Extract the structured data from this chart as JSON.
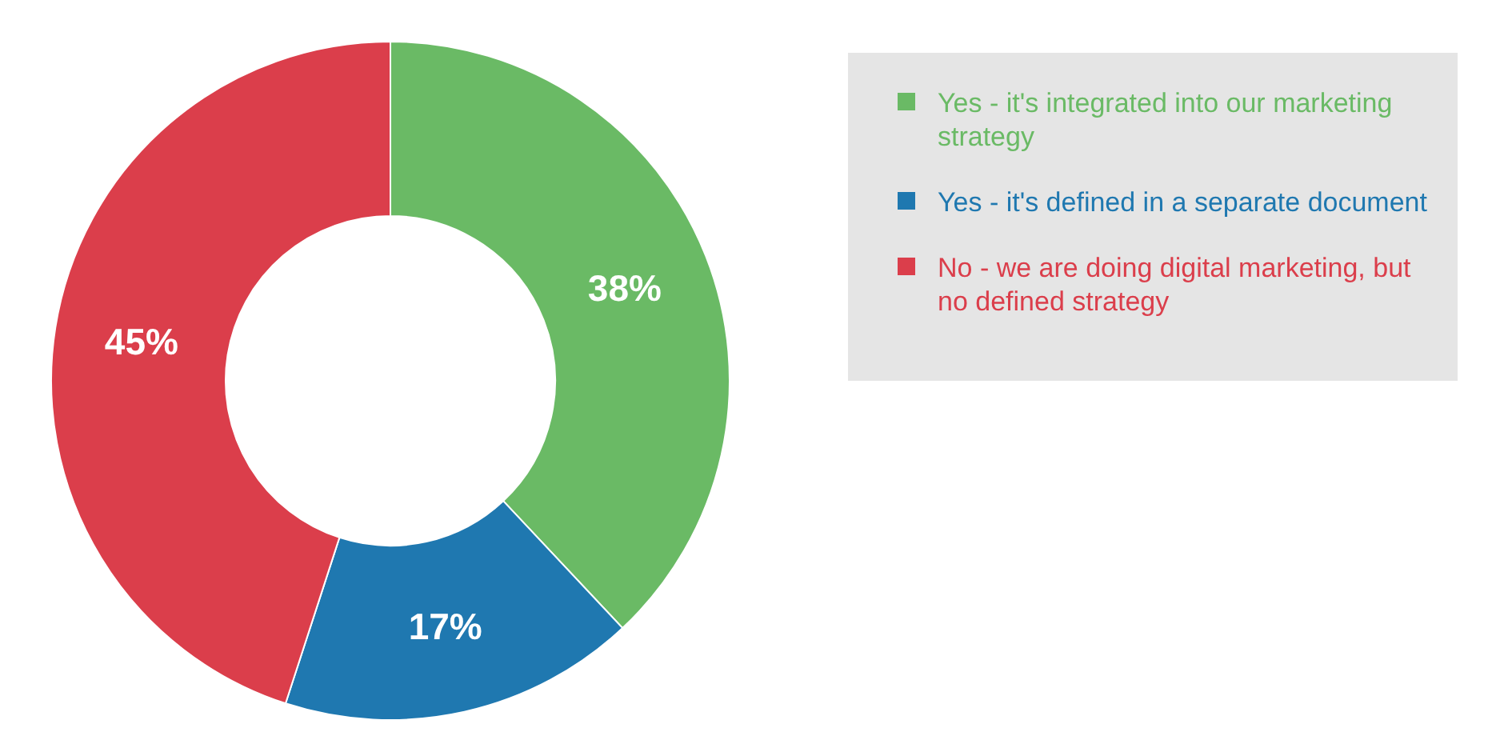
{
  "chart_data": {
    "type": "donut",
    "categories": [
      "Yes - it's integrated into our marketing strategy",
      "Yes - it's defined in a separate document",
      "No - we are doing digital marketing, but no defined strategy"
    ],
    "values": [
      38,
      17,
      45
    ],
    "colors": [
      "#6aba65",
      "#1f78b0",
      "#db3e4b"
    ],
    "value_labels": [
      "38%",
      "17%",
      "45%"
    ],
    "legend": "right"
  }
}
